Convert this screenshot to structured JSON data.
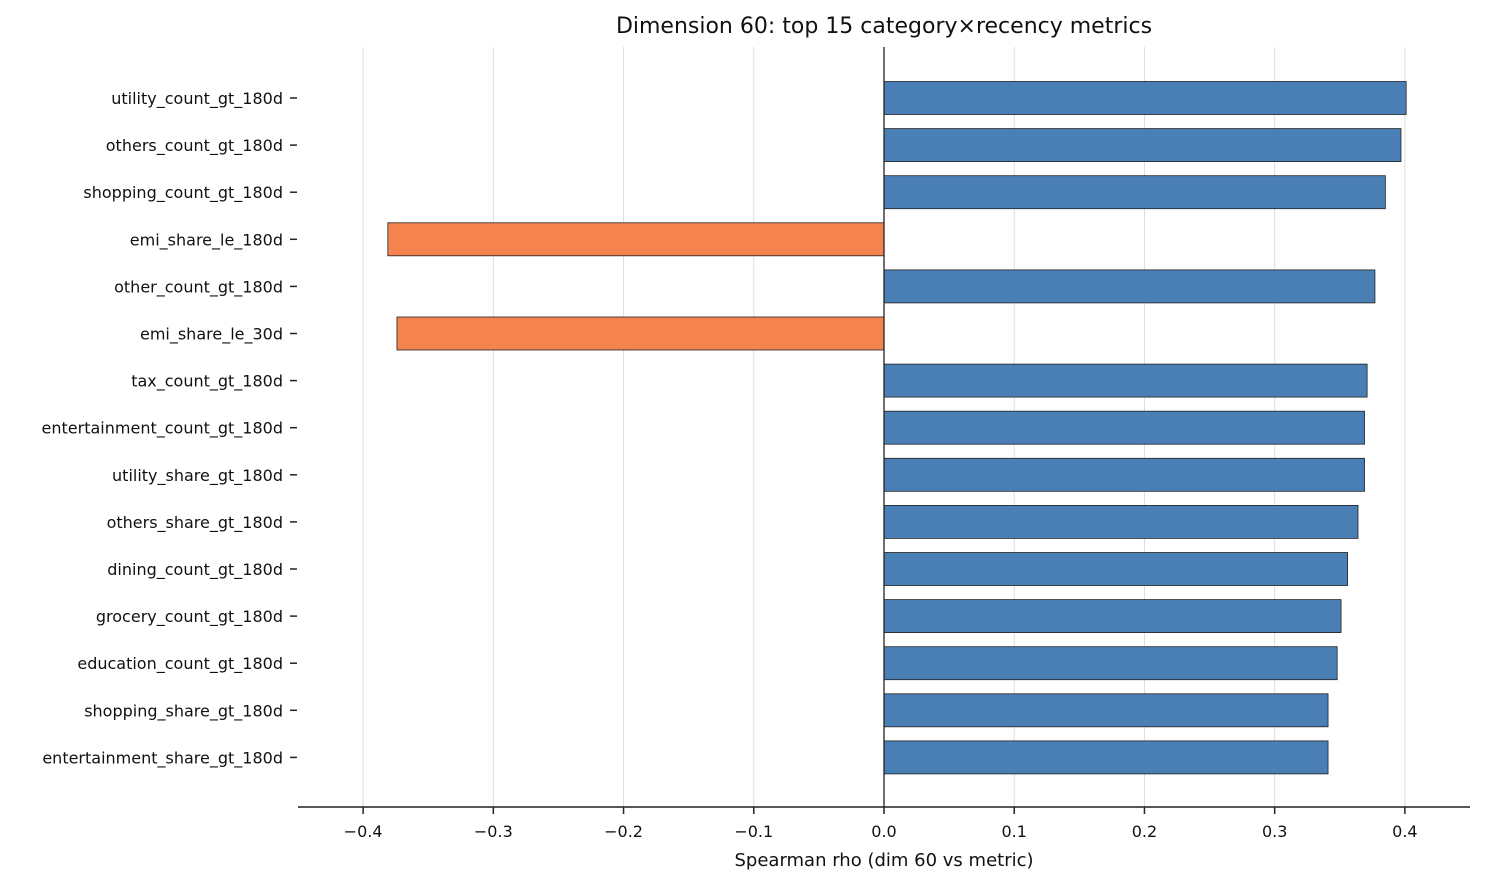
{
  "chart_data": {
    "type": "bar",
    "orientation": "horizontal",
    "title": "Dimension 60: top 15 category×recency metrics",
    "xlabel": "Spearman rho (dim 60 vs metric)",
    "ylabel": "",
    "xlim": [
      -0.45,
      0.45
    ],
    "xticks": [
      -0.4,
      -0.3,
      -0.2,
      -0.1,
      0.0,
      0.1,
      0.2,
      0.3,
      0.4
    ],
    "xtick_labels": [
      "−0.4",
      "−0.3",
      "−0.2",
      "−0.1",
      "0.0",
      "0.1",
      "0.2",
      "0.3",
      "0.4"
    ],
    "grid": "vertical",
    "categories": [
      "utility_count_gt_180d",
      "others_count_gt_180d",
      "shopping_count_gt_180d",
      "emi_share_le_180d",
      "other_count_gt_180d",
      "emi_share_le_30d",
      "tax_count_gt_180d",
      "entertainment_count_gt_180d",
      "utility_share_gt_180d",
      "others_share_gt_180d",
      "dining_count_gt_180d",
      "grocery_count_gt_180d",
      "education_count_gt_180d",
      "shopping_share_gt_180d",
      "entertainment_share_gt_180d"
    ],
    "values": [
      0.401,
      0.397,
      0.385,
      -0.381,
      0.377,
      -0.374,
      0.371,
      0.369,
      0.369,
      0.364,
      0.356,
      0.351,
      0.348,
      0.341,
      0.341
    ],
    "colors": {
      "positive": "#4a7fb5",
      "negative": "#f4834f"
    }
  }
}
